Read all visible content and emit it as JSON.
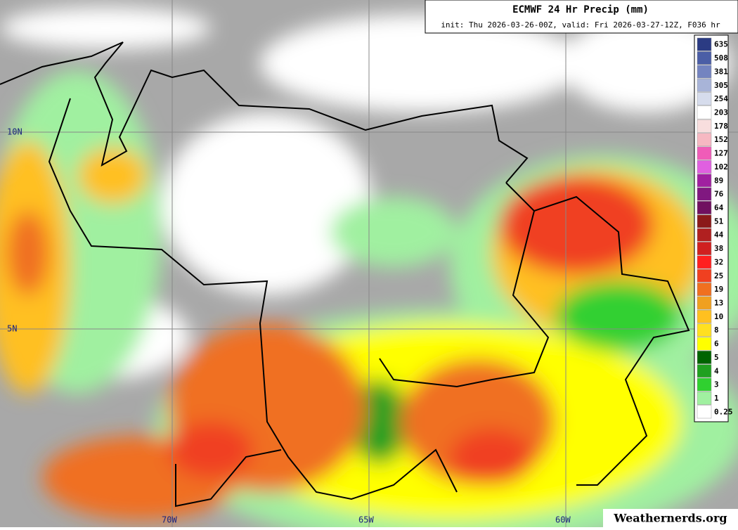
{
  "header": {
    "title": "ECMWF 24 Hr Precip (mm)",
    "subtitle": "init: Thu 2026-03-26-00Z, valid: Fri 2026-03-27-12Z, F036 hr"
  },
  "legend": {
    "levels": [
      {
        "label": "635",
        "color": "#2b3b83"
      },
      {
        "label": "508",
        "color": "#4b5ea6"
      },
      {
        "label": "381",
        "color": "#7484c0"
      },
      {
        "label": "305",
        "color": "#a8b4d8"
      },
      {
        "label": "254",
        "color": "#d6dcec"
      },
      {
        "label": "203",
        "color": "#ffffff"
      },
      {
        "label": "178",
        "color": "#f8dede"
      },
      {
        "label": "152",
        "color": "#f6b8c2"
      },
      {
        "label": "127",
        "color": "#f05cb8"
      },
      {
        "label": "102",
        "color": "#e060e0"
      },
      {
        "label": "89",
        "color": "#a020a0"
      },
      {
        "label": "76",
        "color": "#801880"
      },
      {
        "label": "64",
        "color": "#701060"
      },
      {
        "label": "51",
        "color": "#8b1a1a"
      },
      {
        "label": "44",
        "color": "#b02020"
      },
      {
        "label": "38",
        "color": "#d02020"
      },
      {
        "label": "32",
        "color": "#ff2020"
      },
      {
        "label": "25",
        "color": "#f04020"
      },
      {
        "label": "19",
        "color": "#f07020"
      },
      {
        "label": "13",
        "color": "#f0a020"
      },
      {
        "label": "10",
        "color": "#ffc020"
      },
      {
        "label": "8",
        "color": "#ffe020"
      },
      {
        "label": "6",
        "color": "#ffff00"
      },
      {
        "label": "5",
        "color": "#006400"
      },
      {
        "label": "4",
        "color": "#20a020"
      },
      {
        "label": "3",
        "color": "#30d030"
      },
      {
        "label": "1",
        "color": "#a0f0a0"
      },
      {
        "label": "0.25",
        "color": "#ffffff"
      }
    ]
  },
  "lat_labels": [
    "10N",
    "5N"
  ],
  "lon_labels": [
    "70W",
    "65W",
    "60W"
  ],
  "watermark": "Weathernerds.org"
}
